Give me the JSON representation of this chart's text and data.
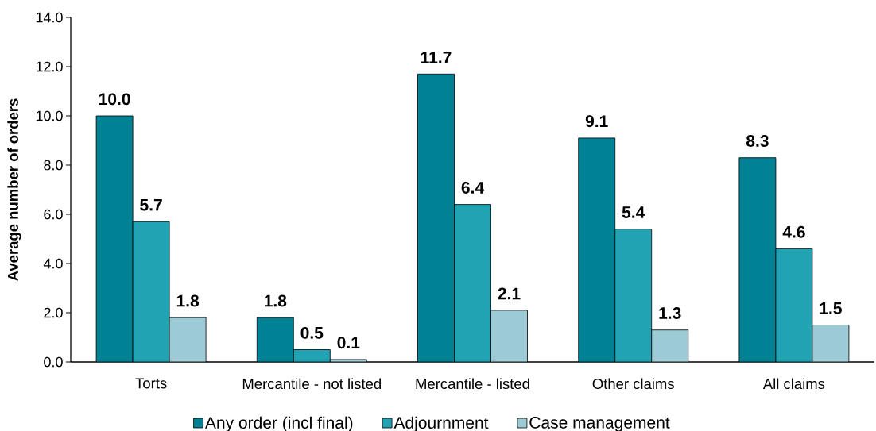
{
  "chart_data": {
    "type": "bar",
    "ylabel": "Average number of orders",
    "categories": [
      "Torts",
      "Mercantile - not listed",
      "Mercantile - listed",
      "Other claims",
      "All claims"
    ],
    "series": [
      {
        "name": "Any order (incl final)",
        "color": "#008294",
        "values": [
          10.0,
          1.8,
          11.7,
          9.1,
          8.3
        ],
        "value_labels": [
          "10.0",
          "1.8",
          "11.7",
          "9.1",
          "8.3"
        ]
      },
      {
        "name": "Adjournment",
        "color": "#21a3b3",
        "values": [
          5.7,
          0.5,
          6.4,
          5.4,
          4.6
        ],
        "value_labels": [
          "5.7",
          "0.5",
          "6.4",
          "5.4",
          "4.6"
        ]
      },
      {
        "name": "Case management",
        "color": "#9ccad5",
        "values": [
          1.8,
          0.1,
          2.1,
          1.3,
          1.5
        ],
        "value_labels": [
          "1.8",
          "0.1",
          "2.1",
          "1.3",
          "1.5"
        ]
      }
    ],
    "ylim": [
      0,
      14
    ],
    "yticks": [
      {
        "value": 0,
        "label": "0.0"
      },
      {
        "value": 2,
        "label": "2.0"
      },
      {
        "value": 4,
        "label": "4.0"
      },
      {
        "value": 6,
        "label": "6.0"
      },
      {
        "value": 8,
        "label": "8.0"
      },
      {
        "value": 10,
        "label": "10.0"
      },
      {
        "value": 12,
        "label": "12.0"
      },
      {
        "value": 14,
        "label": "14.0"
      }
    ],
    "legend": "bottom"
  }
}
